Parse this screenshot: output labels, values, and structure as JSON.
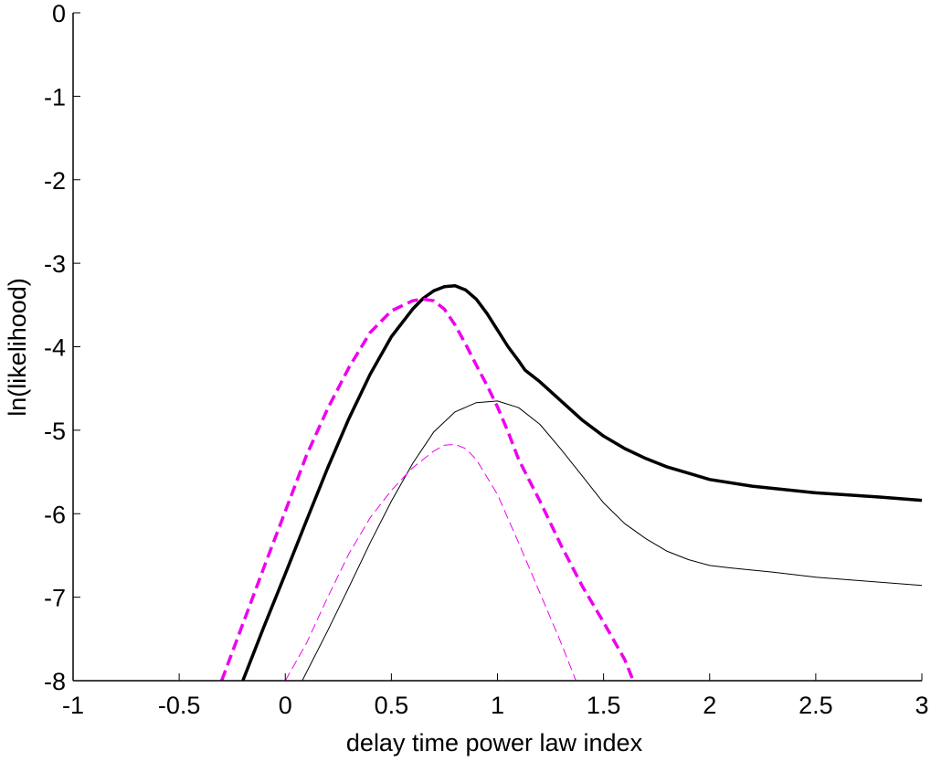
{
  "chart_data": {
    "type": "line",
    "title": "",
    "xlabel": "delay time power law index",
    "ylabel": "ln(likelihood)",
    "xlim": [
      -1,
      3
    ],
    "ylim": [
      -8,
      0
    ],
    "xticks": [
      -1,
      -0.5,
      0,
      0.5,
      1,
      1.5,
      2,
      2.5,
      3
    ],
    "xtick_labels": [
      "-1",
      "-0.5",
      "0",
      "0.5",
      "1",
      "1.5",
      "2",
      "2.5",
      "3"
    ],
    "yticks": [
      -8,
      -7,
      -6,
      -5,
      -4,
      -3,
      -2,
      -1,
      0
    ],
    "ytick_labels": [
      "-8",
      "-7",
      "-6",
      "-5",
      "-4",
      "-3",
      "-2",
      "-1",
      "0"
    ],
    "grid": false,
    "legend": "none",
    "series": [
      {
        "color": "#000000",
        "style": "solid",
        "weight": "thick",
        "x": [
          -0.2,
          -0.1,
          0.0,
          0.1,
          0.2,
          0.3,
          0.4,
          0.5,
          0.6,
          0.65,
          0.7,
          0.75,
          0.8,
          0.85,
          0.9,
          0.95,
          1.0,
          1.05,
          1.1,
          1.13,
          1.2,
          1.3,
          1.4,
          1.5,
          1.6,
          1.7,
          1.8,
          2.0,
          2.2,
          2.5,
          2.8,
          3.0
        ],
        "y": [
          -8.0,
          -7.35,
          -6.72,
          -6.08,
          -5.45,
          -4.86,
          -4.33,
          -3.88,
          -3.55,
          -3.42,
          -3.33,
          -3.28,
          -3.27,
          -3.32,
          -3.43,
          -3.6,
          -3.8,
          -4.0,
          -4.17,
          -4.28,
          -4.42,
          -4.65,
          -4.88,
          -5.07,
          -5.22,
          -5.34,
          -5.44,
          -5.59,
          -5.67,
          -5.75,
          -5.8,
          -5.84
        ]
      },
      {
        "color": "#ee00ee",
        "style": "dashed",
        "weight": "thick",
        "x": [
          -0.3,
          -0.2,
          -0.1,
          0.0,
          0.1,
          0.2,
          0.3,
          0.4,
          0.5,
          0.6,
          0.65,
          0.7,
          0.75,
          0.8,
          0.85,
          0.9,
          0.95,
          1.0,
          1.05,
          1.1,
          1.15,
          1.2,
          1.3,
          1.4,
          1.5,
          1.6,
          1.64
        ],
        "y": [
          -8.0,
          -7.32,
          -6.64,
          -5.97,
          -5.3,
          -4.74,
          -4.25,
          -3.83,
          -3.57,
          -3.45,
          -3.43,
          -3.45,
          -3.55,
          -3.74,
          -3.97,
          -4.22,
          -4.46,
          -4.72,
          -5.02,
          -5.35,
          -5.6,
          -5.85,
          -6.38,
          -6.87,
          -7.3,
          -7.75,
          -8.0
        ]
      },
      {
        "color": "#000000",
        "style": "solid",
        "weight": "thin",
        "x": [
          0.08,
          0.2,
          0.3,
          0.4,
          0.5,
          0.6,
          0.7,
          0.8,
          0.9,
          1.0,
          1.1,
          1.2,
          1.3,
          1.4,
          1.5,
          1.6,
          1.7,
          1.8,
          1.9,
          2.0,
          2.1,
          2.3,
          2.5,
          2.7,
          3.0
        ],
        "y": [
          -8.0,
          -7.4,
          -6.88,
          -6.35,
          -5.85,
          -5.4,
          -5.02,
          -4.78,
          -4.67,
          -4.65,
          -4.73,
          -4.93,
          -5.23,
          -5.55,
          -5.87,
          -6.12,
          -6.3,
          -6.45,
          -6.55,
          -6.62,
          -6.65,
          -6.7,
          -6.76,
          -6.8,
          -6.86
        ]
      },
      {
        "color": "#ee00ee",
        "style": "dashed",
        "weight": "thin",
        "x": [
          0.0,
          0.1,
          0.2,
          0.3,
          0.4,
          0.5,
          0.6,
          0.7,
          0.75,
          0.8,
          0.85,
          0.9,
          1.0,
          1.1,
          1.2,
          1.3,
          1.37
        ],
        "y": [
          -8.0,
          -7.55,
          -7.0,
          -6.48,
          -6.05,
          -5.72,
          -5.45,
          -5.25,
          -5.18,
          -5.17,
          -5.22,
          -5.35,
          -5.77,
          -6.35,
          -6.95,
          -7.55,
          -8.0
        ]
      }
    ]
  }
}
